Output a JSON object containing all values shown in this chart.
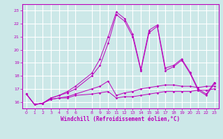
{
  "xlabel": "Windchill (Refroidissement éolien,°C)",
  "background_color": "#cce8e8",
  "grid_color": "#ffffff",
  "line_color": "#bb00bb",
  "xlim": [
    -0.5,
    23.5
  ],
  "ylim": [
    15.5,
    23.5
  ],
  "xticks": [
    0,
    1,
    2,
    3,
    4,
    5,
    6,
    8,
    9,
    10,
    11,
    12,
    13,
    14,
    15,
    16,
    17,
    18,
    19,
    20,
    21,
    22,
    23
  ],
  "yticks": [
    16,
    17,
    18,
    19,
    20,
    21,
    22,
    23
  ],
  "series_x": [
    0,
    1,
    2,
    3,
    4,
    5,
    6,
    8,
    9,
    10,
    11,
    12,
    13,
    14,
    15,
    16,
    17,
    18,
    19,
    20,
    21,
    22,
    23
  ],
  "series": [
    [
      16.6,
      15.8,
      15.9,
      16.2,
      16.3,
      16.3,
      16.5,
      16.6,
      16.7,
      16.8,
      16.3,
      16.4,
      16.4,
      16.5,
      16.6,
      16.7,
      16.8,
      16.8,
      16.8,
      16.8,
      16.9,
      16.9,
      17.0
    ],
    [
      16.6,
      15.8,
      15.9,
      16.2,
      16.3,
      16.4,
      16.6,
      17.0,
      17.2,
      17.6,
      16.5,
      16.7,
      16.8,
      17.0,
      17.1,
      17.2,
      17.3,
      17.3,
      17.2,
      17.2,
      17.1,
      17.2,
      17.2
    ],
    [
      16.6,
      15.8,
      15.9,
      16.3,
      16.5,
      16.8,
      17.2,
      18.2,
      19.3,
      21.0,
      22.9,
      22.4,
      21.2,
      18.5,
      21.5,
      21.9,
      18.6,
      18.8,
      19.3,
      18.3,
      17.0,
      16.6,
      17.5
    ],
    [
      16.6,
      15.8,
      15.9,
      16.3,
      16.5,
      16.7,
      17.0,
      18.0,
      18.8,
      20.5,
      22.7,
      22.2,
      21.0,
      18.4,
      21.3,
      21.8,
      18.4,
      18.7,
      19.2,
      18.2,
      16.9,
      16.5,
      17.4
    ]
  ]
}
